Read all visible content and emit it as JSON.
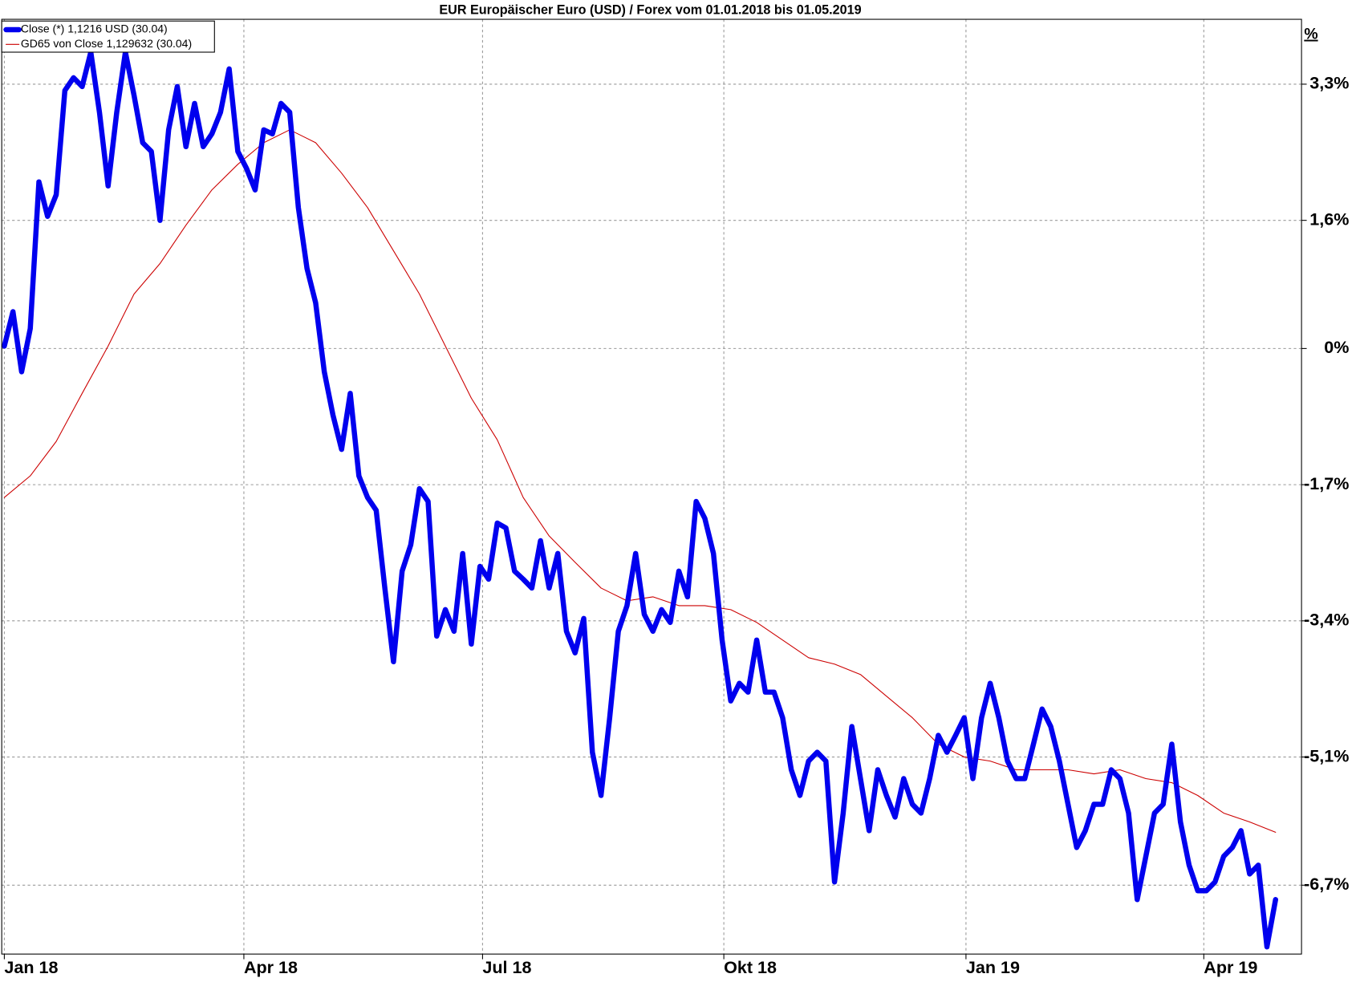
{
  "chart_data": {
    "type": "line",
    "title": "EUR Europäischer Euro (USD) / Forex vom 01.01.2018 bis 01.05.2019",
    "y_axis_label": "%",
    "xlim": [
      -0.3,
      150
    ],
    "xticks": [
      {
        "value": 0,
        "label": "Jan 18"
      },
      {
        "value": 27.7,
        "label": "Apr 18"
      },
      {
        "value": 55.3,
        "label": "Jul 18"
      },
      {
        "value": 83.2,
        "label": "Okt 18"
      },
      {
        "value": 111.2,
        "label": "Jan 19"
      },
      {
        "value": 138.7,
        "label": "Apr 19"
      }
    ],
    "ylim": [
      -7.56,
      4.11
    ],
    "yticks": [
      {
        "value": 3.3,
        "label": "3,3%"
      },
      {
        "value": 1.6,
        "label": "1,6%"
      },
      {
        "value": 0,
        "label": "0%"
      },
      {
        "value": -1.7,
        "label": "-1,7%"
      },
      {
        "value": -3.4,
        "label": "-3,4%"
      },
      {
        "value": -5.1,
        "label": "-5,1%"
      },
      {
        "value": -6.7,
        "label": "-6,7%"
      }
    ],
    "grid": true,
    "legend": "top-left",
    "series": [
      {
        "name": "Close (*) 1,1216 USD (30.04)",
        "color": "#0000ee",
        "values": [
          0.03,
          0.46,
          -0.29,
          0.25,
          2.08,
          1.65,
          1.92,
          3.22,
          3.38,
          3.27,
          3.7,
          2.95,
          2.03,
          2.95,
          3.7,
          3.16,
          2.57,
          2.46,
          1.6,
          2.73,
          3.27,
          2.52,
          3.06,
          2.52,
          2.68,
          2.95,
          3.49,
          2.46,
          2.25,
          1.98,
          2.73,
          2.68,
          3.06,
          2.95,
          1.76,
          1.0,
          0.57,
          -0.29,
          -0.83,
          -1.26,
          -0.56,
          -1.59,
          -1.86,
          -2.02,
          -2.99,
          -3.91,
          -2.78,
          -2.45,
          -1.75,
          -1.91,
          -3.59,
          -3.26,
          -3.53,
          -2.56,
          -3.69,
          -2.72,
          -2.88,
          -2.18,
          -2.24,
          -2.78,
          -2.88,
          -2.99,
          -2.4,
          -2.99,
          -2.56,
          -3.53,
          -3.8,
          -3.37,
          -5.04,
          -5.58,
          -4.61,
          -3.53,
          -3.21,
          -2.56,
          -3.32,
          -3.53,
          -3.26,
          -3.42,
          -2.78,
          -3.1,
          -1.91,
          -2.12,
          -2.56,
          -3.64,
          -4.4,
          -4.18,
          -4.29,
          -3.64,
          -4.29,
          -4.29,
          -4.61,
          -5.26,
          -5.58,
          -5.15,
          -5.04,
          -5.15,
          -6.66,
          -5.8,
          -4.72,
          -5.37,
          -6.02,
          -5.26,
          -5.58,
          -5.85,
          -5.37,
          -5.69,
          -5.8,
          -5.37,
          -4.83,
          -5.04,
          -4.83,
          -4.61,
          -5.37,
          -4.61,
          -4.18,
          -4.61,
          -5.15,
          -5.37,
          -5.37,
          -4.94,
          -4.5,
          -4.72,
          -5.15,
          -5.69,
          -6.23,
          -6.02,
          -5.69,
          -5.69,
          -5.26,
          -5.37,
          -5.8,
          -6.88,
          -6.34,
          -5.8,
          -5.69,
          -4.94,
          -5.91,
          -6.45,
          -6.77,
          -6.77,
          -6.66,
          -6.34,
          -6.23,
          -6.02,
          -6.56,
          -6.45,
          -7.47,
          -6.88
        ]
      },
      {
        "name": "GD65 von Close 1,129632 (30.04)",
        "color": "#cc0000",
        "x": [
          0,
          3,
          6,
          9,
          12,
          15,
          18,
          21,
          24,
          27,
          30,
          33,
          36,
          39,
          42,
          45,
          48,
          51,
          54,
          57,
          60,
          63,
          66,
          69,
          72,
          75,
          78,
          81,
          84,
          87,
          90,
          93,
          96,
          99,
          102,
          105,
          108,
          111,
          114,
          117,
          120,
          123,
          126,
          129,
          132,
          135,
          138,
          141,
          144,
          147
        ],
        "values": [
          -1.86,
          -1.59,
          -1.16,
          -0.56,
          0.03,
          0.68,
          1.06,
          1.54,
          1.98,
          2.3,
          2.57,
          2.73,
          2.57,
          2.19,
          1.76,
          1.22,
          0.68,
          0.03,
          -0.62,
          -1.14,
          -1.86,
          -2.34,
          -2.67,
          -2.99,
          -3.15,
          -3.1,
          -3.21,
          -3.21,
          -3.26,
          -3.42,
          -3.64,
          -3.86,
          -3.94,
          -4.07,
          -4.34,
          -4.61,
          -4.94,
          -5.1,
          -5.15,
          -5.26,
          -5.26,
          -5.26,
          -5.31,
          -5.26,
          -5.37,
          -5.42,
          -5.58,
          -5.8,
          -5.91,
          -6.04
        ]
      }
    ]
  }
}
